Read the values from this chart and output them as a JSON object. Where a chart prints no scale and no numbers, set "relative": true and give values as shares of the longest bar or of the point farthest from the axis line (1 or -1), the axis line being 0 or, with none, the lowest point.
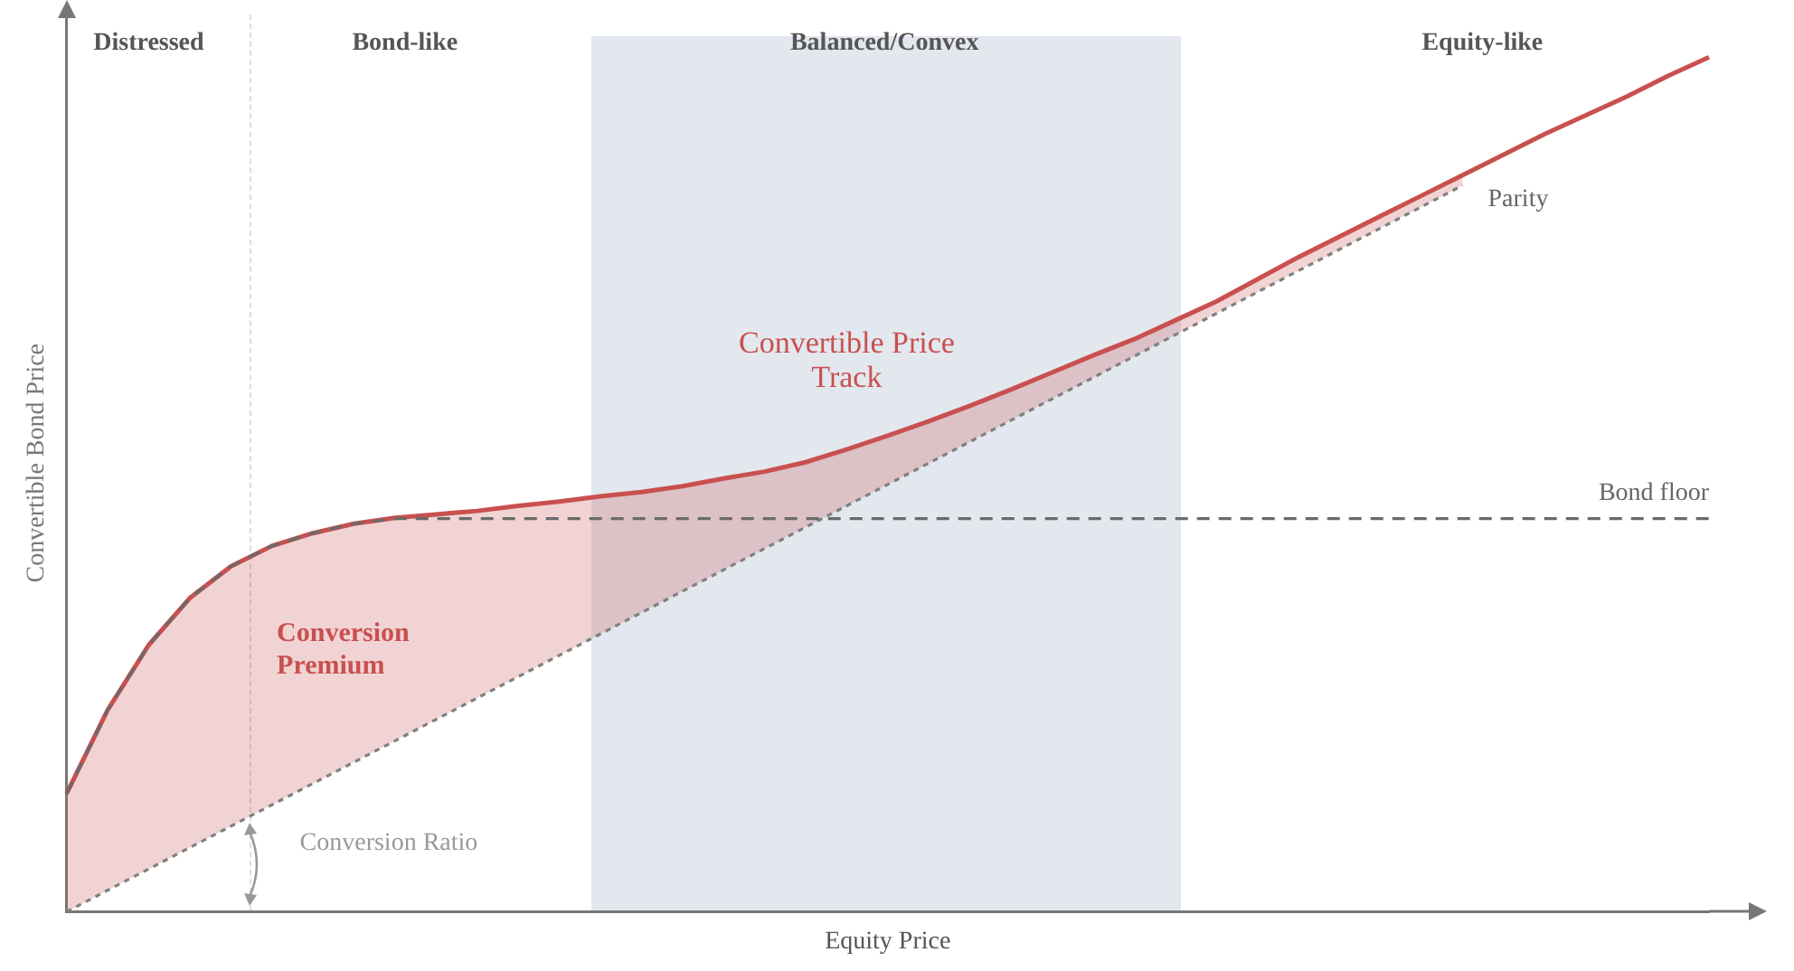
{
  "chart_data": {
    "type": "line",
    "relative": true,
    "xlabel": "Equity Price",
    "ylabel": "Convertible Bond Price",
    "categories": [
      null,
      null,
      null,
      null,
      null,
      null,
      null,
      null,
      null,
      null,
      null,
      null,
      null,
      null,
      null,
      null,
      null,
      null,
      null,
      null,
      null,
      null,
      null,
      null,
      null,
      null,
      null,
      null,
      null,
      null,
      null,
      null,
      null,
      null,
      null,
      null,
      null,
      null,
      null,
      null,
      null
    ],
    "series": [
      {
        "name": "Convertible Price Track",
        "color": "#c8504f",
        "line_style": "solid",
        "values": [
          0.138,
          0.236,
          0.312,
          0.367,
          0.404,
          0.428,
          0.443,
          0.454,
          0.461,
          0.465,
          0.469,
          0.475,
          0.48,
          0.486,
          0.491,
          0.498,
          0.507,
          0.515,
          0.526,
          0.541,
          0.557,
          0.574,
          0.592,
          0.611,
          0.631,
          0.651,
          0.67,
          0.692,
          0.714,
          0.74,
          0.766,
          0.79,
          0.814,
          0.838,
          0.862,
          0.886,
          0.91,
          0.932,
          0.954,
          0.978,
          1
        ],
        "upper": [
          0.138,
          0.236,
          0.312,
          0.367,
          0.404,
          0.428,
          0.443,
          0.454,
          0.461,
          0.465,
          0.469,
          0.475,
          0.48,
          0.486,
          0.491,
          0.498,
          0.507,
          0.515,
          0.526,
          0.541,
          0.557,
          0.574,
          0.592,
          0.611,
          0.631,
          0.651,
          0.67,
          0.692,
          0.714,
          0.74,
          0.766,
          0.79,
          0.814,
          0.838,
          0.862,
          null,
          null,
          null,
          null,
          null,
          null
        ],
        "lower": [
          0,
          0.025,
          0.05,
          0.075,
          0.1,
          0.125,
          0.15,
          0.175,
          0.2,
          0.225,
          0.25,
          0.275,
          0.3,
          0.325,
          0.35,
          0.375,
          0.4,
          0.425,
          0.45,
          0.475,
          0.5,
          0.525,
          0.55,
          0.575,
          0.6,
          0.625,
          0.65,
          0.675,
          0.7,
          0.725,
          0.75,
          0.775,
          0.8,
          0.825,
          0.85,
          null,
          null,
          null,
          null,
          null,
          null
        ]
      },
      {
        "name": "Parity",
        "color": "#808080",
        "line_style": "dotted",
        "values": [
          0,
          0.025,
          0.05,
          0.075,
          0.1,
          0.125,
          0.15,
          0.175,
          0.2,
          0.225,
          0.25,
          0.275,
          0.3,
          0.325,
          0.35,
          0.375,
          0.4,
          0.425,
          0.45,
          0.475,
          0.5,
          0.525,
          0.55,
          0.575,
          0.6,
          0.625,
          0.65,
          0.675,
          0.7,
          0.725,
          0.75,
          0.775,
          0.8,
          0.825,
          0.85,
          null,
          null,
          null,
          null,
          null,
          null
        ]
      },
      {
        "name": "Bond floor",
        "color": "#6a6a6a",
        "line_style": "dashed",
        "values": [
          0.138,
          0.236,
          0.312,
          0.367,
          0.404,
          0.428,
          0.443,
          0.454,
          0.46,
          0.46,
          0.46,
          0.46,
          0.46,
          0.46,
          0.46,
          0.46,
          0.46,
          0.46,
          0.46,
          0.46,
          0.46,
          0.46,
          0.46,
          0.46,
          0.46,
          0.46,
          0.46,
          0.46,
          0.46,
          0.46,
          0.46,
          0.46,
          0.46,
          0.46,
          0.46,
          0.46,
          0.46,
          0.46,
          0.46,
          0.46,
          0.46
        ]
      }
    ],
    "annotations": [
      "Distressed",
      "Bond-like",
      "Balanced/Convex",
      "Equity-like",
      "Conversion Premium",
      "Conversion Ratio"
    ]
  }
}
